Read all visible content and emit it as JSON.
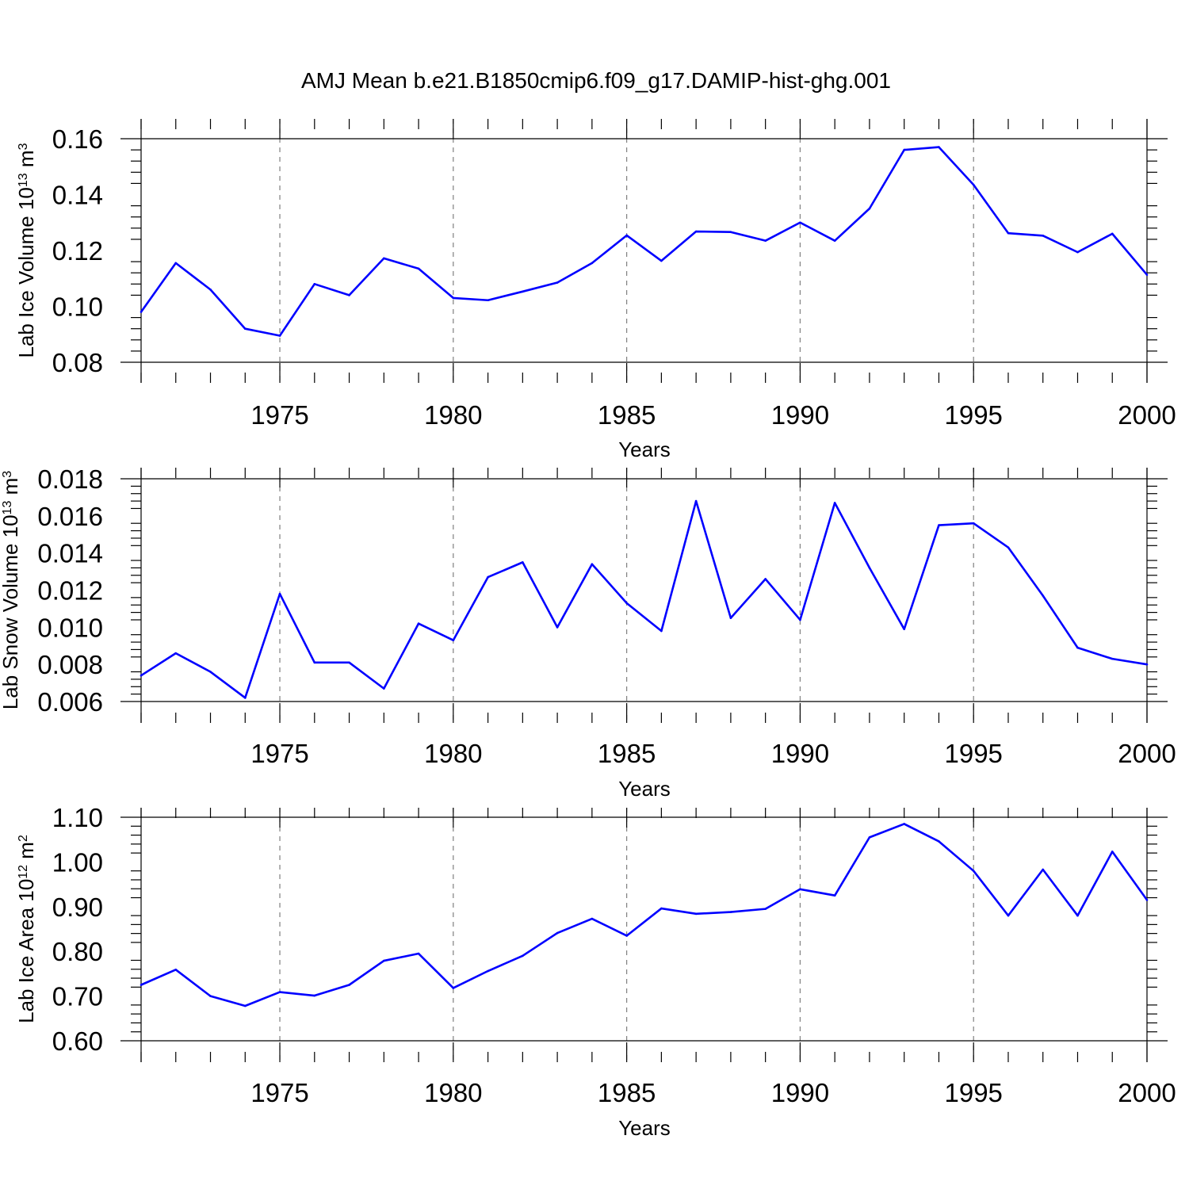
{
  "title": "AMJ Mean b.e21.B1850cmip6.f09_g17.DAMIP-hist-ghg.001",
  "colors": {
    "series_line": "#0000ff",
    "axis": "#000000",
    "grid": "#808080"
  },
  "chart_data": [
    {
      "type": "line",
      "ylabel_text": "Lab Ice Volume 10",
      "ylabel_exp": "13",
      "ylabel_unit": " m",
      "ylabel_unit_exp": "3",
      "xlabel": "Years",
      "xlim": [
        1971,
        2000
      ],
      "ylim": [
        0.08,
        0.16
      ],
      "x_ticks": [
        1975,
        1980,
        1985,
        1990,
        1995,
        2000
      ],
      "y_ticks": [
        "0.08",
        "0.10",
        "0.12",
        "0.14",
        "0.16"
      ],
      "grid": "vertical dashed lines at major x ticks",
      "x": [
        1971,
        1972,
        1973,
        1974,
        1975,
        1976,
        1977,
        1978,
        1979,
        1980,
        1981,
        1982,
        1983,
        1984,
        1985,
        1986,
        1987,
        1988,
        1989,
        1990,
        1991,
        1992,
        1993,
        1994,
        1995,
        1996,
        1997,
        1998,
        1999,
        2000
      ],
      "values": [
        0.098,
        0.1155,
        0.106,
        0.092,
        0.0895,
        0.108,
        0.104,
        0.1172,
        0.1135,
        0.103,
        0.1022,
        0.1053,
        0.1085,
        0.1155,
        0.1254,
        0.1163,
        0.1268,
        0.1266,
        0.1235,
        0.13,
        0.1235,
        0.135,
        0.156,
        0.157,
        0.1435,
        0.1262,
        0.1253,
        0.1194,
        0.126,
        0.1113
      ]
    },
    {
      "type": "line",
      "ylabel_text": "Lab Snow Volume 10",
      "ylabel_exp": "13",
      "ylabel_unit": " m",
      "ylabel_unit_exp": "3",
      "xlabel": "Years",
      "xlim": [
        1971,
        2000
      ],
      "ylim": [
        0.006,
        0.018
      ],
      "x_ticks": [
        1975,
        1980,
        1985,
        1990,
        1995,
        2000
      ],
      "y_ticks": [
        "0.006",
        "0.008",
        "0.010",
        "0.012",
        "0.014",
        "0.016",
        "0.018"
      ],
      "grid": "vertical dashed lines at major x ticks",
      "x": [
        1971,
        1972,
        1973,
        1974,
        1975,
        1976,
        1977,
        1978,
        1979,
        1980,
        1981,
        1982,
        1983,
        1984,
        1985,
        1986,
        1987,
        1988,
        1989,
        1990,
        1991,
        1992,
        1993,
        1994,
        1995,
        1996,
        1997,
        1998,
        1999,
        2000
      ],
      "values": [
        0.0074,
        0.0086,
        0.0076,
        0.0062,
        0.0118,
        0.0081,
        0.0081,
        0.0067,
        0.0102,
        0.0093,
        0.0127,
        0.0135,
        0.01,
        0.0134,
        0.0113,
        0.0098,
        0.0168,
        0.0105,
        0.0126,
        0.0104,
        0.0167,
        0.0132,
        0.0099,
        0.0155,
        0.0156,
        0.0143,
        0.0117,
        0.0089,
        0.0083,
        0.008
      ]
    },
    {
      "type": "line",
      "ylabel_text": "Lab Ice Area 10",
      "ylabel_exp": "12",
      "ylabel_unit": " m",
      "ylabel_unit_exp": "2",
      "xlabel": "Years",
      "xlim": [
        1971,
        2000
      ],
      "ylim": [
        0.6,
        1.1
      ],
      "x_ticks": [
        1975,
        1980,
        1985,
        1990,
        1995,
        2000
      ],
      "y_ticks": [
        "0.60",
        "0.70",
        "0.80",
        "0.90",
        "1.00",
        "1.10"
      ],
      "grid": "vertical dashed lines at major x ticks",
      "x": [
        1971,
        1972,
        1973,
        1974,
        1975,
        1976,
        1977,
        1978,
        1979,
        1980,
        1981,
        1982,
        1983,
        1984,
        1985,
        1986,
        1987,
        1988,
        1989,
        1990,
        1991,
        1992,
        1993,
        1994,
        1995,
        1996,
        1997,
        1998,
        1999,
        2000
      ],
      "values": [
        0.725,
        0.759,
        0.7,
        0.678,
        0.709,
        0.701,
        0.725,
        0.779,
        0.795,
        0.718,
        0.756,
        0.79,
        0.841,
        0.873,
        0.835,
        0.896,
        0.884,
        0.888,
        0.895,
        0.939,
        0.925,
        1.055,
        1.085,
        1.046,
        0.98,
        0.88,
        0.983,
        0.88,
        1.023,
        0.915
      ]
    }
  ]
}
